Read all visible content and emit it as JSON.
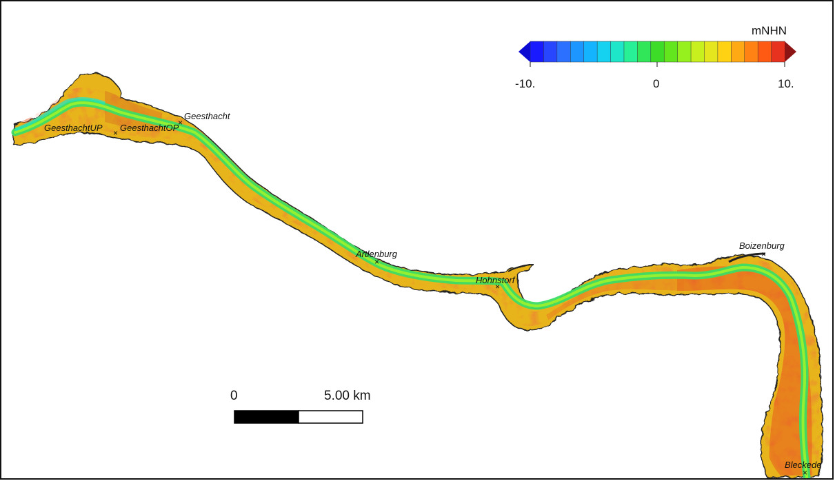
{
  "legend": {
    "unit": "mNHN",
    "min_label": "-10.",
    "mid_label": "0",
    "max_label": "10.",
    "colors": [
      "#1a1aff",
      "#2946ff",
      "#2c70ff",
      "#1e96ff",
      "#14b4ff",
      "#14d2f0",
      "#1ee6c8",
      "#28f096",
      "#32e65a",
      "#3cdc28",
      "#64e61e",
      "#96f01e",
      "#c8f01e",
      "#e6e61e",
      "#ffd214",
      "#ffaa14",
      "#ff8214",
      "#ff5a14",
      "#e6321e"
    ],
    "below_color": "#0a0ad2",
    "above_color": "#8c1414"
  },
  "places": [
    {
      "id": "geesthachtup",
      "label": "GeesthachtUP"
    },
    {
      "id": "geesthachtop",
      "label": "GeesthachtOP"
    },
    {
      "id": "geesthacht",
      "label": "Geesthacht"
    },
    {
      "id": "artlenburg",
      "label": "Artlenburg"
    },
    {
      "id": "hohnstorf",
      "label": "Hohnstorf"
    },
    {
      "id": "boizenburg",
      "label": "Boizenburg"
    },
    {
      "id": "bleckede",
      "label": "Bleckede"
    }
  ],
  "scalebar": {
    "zero_label": "0",
    "distance_label": "5.00 km"
  }
}
